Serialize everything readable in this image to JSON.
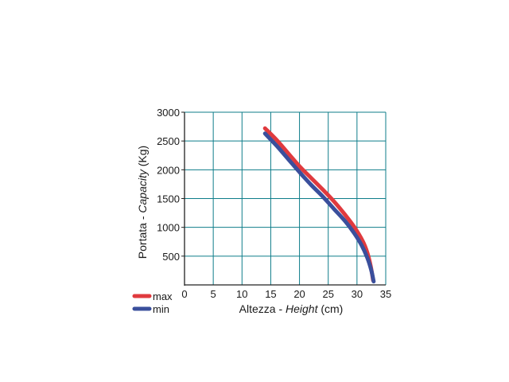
{
  "chart_data": {
    "type": "line",
    "title": "",
    "xlabel_prefix": "Altezza - ",
    "xlabel_italic": "Height",
    "xlabel_suffix": " (cm)",
    "ylabel_prefix": "Portata - ",
    "ylabel_italic": "Capacity",
    "ylabel_suffix": " (Kg)",
    "xlim": [
      0,
      35
    ],
    "ylim": [
      0,
      3000
    ],
    "x_ticks": [
      0,
      5,
      10,
      15,
      20,
      25,
      30,
      35
    ],
    "y_ticks": [
      500,
      1000,
      1500,
      2000,
      2500,
      3000
    ],
    "grid": true,
    "grid_color": "#0e7d8a",
    "legend_position": "bottom-left",
    "series": [
      {
        "name": "max",
        "color": "#e03a3e",
        "points": [
          [
            14,
            2720
          ],
          [
            16,
            2520
          ],
          [
            18,
            2290
          ],
          [
            20,
            2060
          ],
          [
            22,
            1860
          ],
          [
            24,
            1660
          ],
          [
            26,
            1450
          ],
          [
            28,
            1210
          ],
          [
            29.5,
            1010
          ],
          [
            31,
            760
          ],
          [
            31.8,
            560
          ],
          [
            32.4,
            320
          ],
          [
            32.8,
            80
          ]
        ]
      },
      {
        "name": "min",
        "color": "#3a4f9c",
        "points": [
          [
            14,
            2630
          ],
          [
            16,
            2420
          ],
          [
            18,
            2190
          ],
          [
            20,
            1960
          ],
          [
            22,
            1740
          ],
          [
            24,
            1540
          ],
          [
            26,
            1320
          ],
          [
            28,
            1100
          ],
          [
            29.5,
            900
          ],
          [
            30.8,
            690
          ],
          [
            31.8,
            470
          ],
          [
            32.5,
            250
          ],
          [
            32.9,
            60
          ]
        ]
      }
    ]
  }
}
